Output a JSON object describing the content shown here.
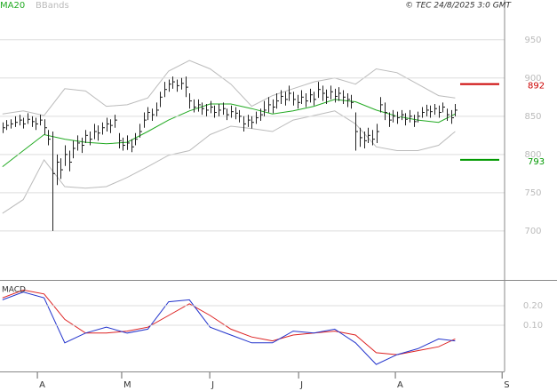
{
  "chart_data": [
    {
      "type": "ohlc",
      "source": "© TEC 24/8/2025 3:0 GMT",
      "xlim": [
        -0.6,
        120.9
      ],
      "ylim": [
        636,
        1002
      ],
      "yticks": [
        700,
        750,
        800,
        850,
        900,
        950
      ],
      "grid": true,
      "bar_color": "#222222",
      "high": [
        842,
        845,
        846,
        850,
        852,
        848,
        854,
        850,
        848,
        852,
        846,
        832,
        830,
        800,
        795,
        812,
        805,
        818,
        825,
        822,
        832,
        830,
        840,
        838,
        842,
        848,
        846,
        852,
        828,
        822,
        825,
        820,
        828,
        840,
        855,
        862,
        860,
        868,
        882,
        895,
        898,
        902,
        898,
        900,
        902,
        880,
        872,
        872,
        868,
        866,
        870,
        864,
        866,
        868,
        860,
        864,
        862,
        858,
        850,
        852,
        850,
        856,
        860,
        870,
        875,
        872,
        880,
        884,
        882,
        890,
        882,
        878,
        884,
        880,
        886,
        882,
        895,
        890,
        885,
        890,
        886,
        888,
        884,
        880,
        878,
        855,
        835,
        830,
        835,
        832,
        840,
        875,
        868,
        855,
        858,
        856,
        858,
        854,
        858,
        852,
        856,
        862,
        865,
        864,
        866,
        864,
        868,
        860,
        858,
        866
      ],
      "low": [
        828,
        832,
        834,
        836,
        838,
        834,
        840,
        836,
        832,
        838,
        826,
        812,
        700,
        760,
        768,
        785,
        778,
        795,
        805,
        802,
        815,
        812,
        820,
        818,
        826,
        830,
        828,
        835,
        808,
        805,
        806,
        803,
        812,
        822,
        835,
        845,
        844,
        850,
        862,
        875,
        882,
        886,
        882,
        885,
        875,
        860,
        855,
        856,
        852,
        850,
        854,
        848,
        850,
        852,
        845,
        848,
        846,
        842,
        830,
        836,
        834,
        840,
        844,
        850,
        855,
        854,
        860,
        866,
        864,
        870,
        864,
        860,
        866,
        862,
        868,
        864,
        874,
        870,
        866,
        872,
        868,
        870,
        866,
        862,
        860,
        805,
        810,
        808,
        815,
        812,
        815,
        855,
        845,
        836,
        842,
        840,
        845,
        838,
        842,
        836,
        842,
        848,
        850,
        848,
        852,
        848,
        855,
        844,
        840,
        850
      ],
      "close": [
        835,
        838,
        840,
        842,
        845,
        840,
        846,
        843,
        840,
        845,
        835,
        820,
        775,
        790,
        780,
        800,
        790,
        808,
        815,
        812,
        825,
        820,
        830,
        828,
        835,
        840,
        838,
        845,
        818,
        812,
        815,
        810,
        820,
        830,
        845,
        855,
        852,
        858,
        875,
        885,
        892,
        895,
        890,
        893,
        888,
        870,
        862,
        865,
        860,
        858,
        862,
        855,
        858,
        860,
        852,
        856,
        854,
        850,
        840,
        845,
        842,
        848,
        852,
        858,
        865,
        862,
        870,
        876,
        872,
        880,
        872,
        868,
        875,
        870,
        878,
        872,
        885,
        880,
        875,
        882,
        876,
        880,
        875,
        872,
        868,
        830,
        822,
        818,
        825,
        820,
        830,
        865,
        855,
        845,
        850,
        848,
        852,
        846,
        850,
        843,
        850,
        855,
        858,
        856,
        860,
        855,
        862,
        852,
        848,
        858
      ],
      "line_x": [
        0,
        5,
        10,
        15,
        20,
        25,
        30,
        35,
        40,
        45,
        50,
        55,
        60,
        65,
        70,
        75,
        80,
        85,
        90,
        95,
        100,
        105,
        109
      ],
      "series": [
        {
          "name": "MA20",
          "color": "#22aa22",
          "values": [
            784,
            805,
            826,
            820,
            816,
            814,
            816,
            830,
            845,
            857,
            866,
            866,
            860,
            853,
            857,
            863,
            872,
            869,
            858,
            850,
            845,
            842,
            853
          ]
        },
        {
          "name": "BBands",
          "color": "#bbbbbb",
          "upper": [
            853,
            857,
            851,
            886,
            883,
            863,
            865,
            874,
            909,
            923,
            912,
            892,
            863,
            877,
            886,
            895,
            900,
            892,
            912,
            907,
            892,
            877,
            874
          ],
          "lower": [
            723,
            741,
            793,
            758,
            756,
            758,
            770,
            784,
            799,
            805,
            826,
            837,
            834,
            830,
            845,
            851,
            857,
            840,
            810,
            805,
            805,
            812,
            830
          ]
        }
      ],
      "levels": [
        {
          "value": 892,
          "color": "#cc0000"
        },
        {
          "value": 793,
          "color": "#009900"
        }
      ]
    },
    {
      "type": "line",
      "title": "MACD",
      "xlim": [
        -0.6,
        120.9
      ],
      "ylim": [
        -0.136,
        0.327
      ],
      "yticks": [
        {
          "value": 0.1,
          "label": "0.10"
        },
        {
          "value": 0.2,
          "label": "0.20"
        }
      ],
      "xticks": [
        {
          "value": 8.4,
          "label": "A"
        },
        {
          "value": 28.7,
          "label": "M"
        },
        {
          "value": 49.9,
          "label": "J"
        },
        {
          "value": 71.3,
          "label": "J"
        },
        {
          "value": 94.6,
          "label": "A"
        },
        {
          "value": 120.3,
          "label": "S"
        }
      ],
      "x": [
        0,
        5,
        10,
        15,
        20,
        25,
        30,
        35,
        40,
        45,
        50,
        55,
        60,
        65,
        70,
        75,
        80,
        85,
        90,
        95,
        100,
        105,
        109
      ],
      "series": [
        {
          "color": "#2233cc",
          "values": [
            0.23,
            0.27,
            0.24,
            0.01,
            0.06,
            0.09,
            0.06,
            0.08,
            0.22,
            0.23,
            0.09,
            0.05,
            0.01,
            0.01,
            0.07,
            0.06,
            0.08,
            0.01,
            -0.1,
            -0.05,
            -0.02,
            0.03,
            0.02
          ]
        },
        {
          "color": "#dd2222",
          "values": [
            0.24,
            0.28,
            0.26,
            0.13,
            0.06,
            0.06,
            0.07,
            0.09,
            0.15,
            0.21,
            0.15,
            0.08,
            0.04,
            0.02,
            0.05,
            0.06,
            0.07,
            0.05,
            -0.04,
            -0.05,
            -0.03,
            -0.01,
            0.03
          ]
        }
      ]
    }
  ]
}
